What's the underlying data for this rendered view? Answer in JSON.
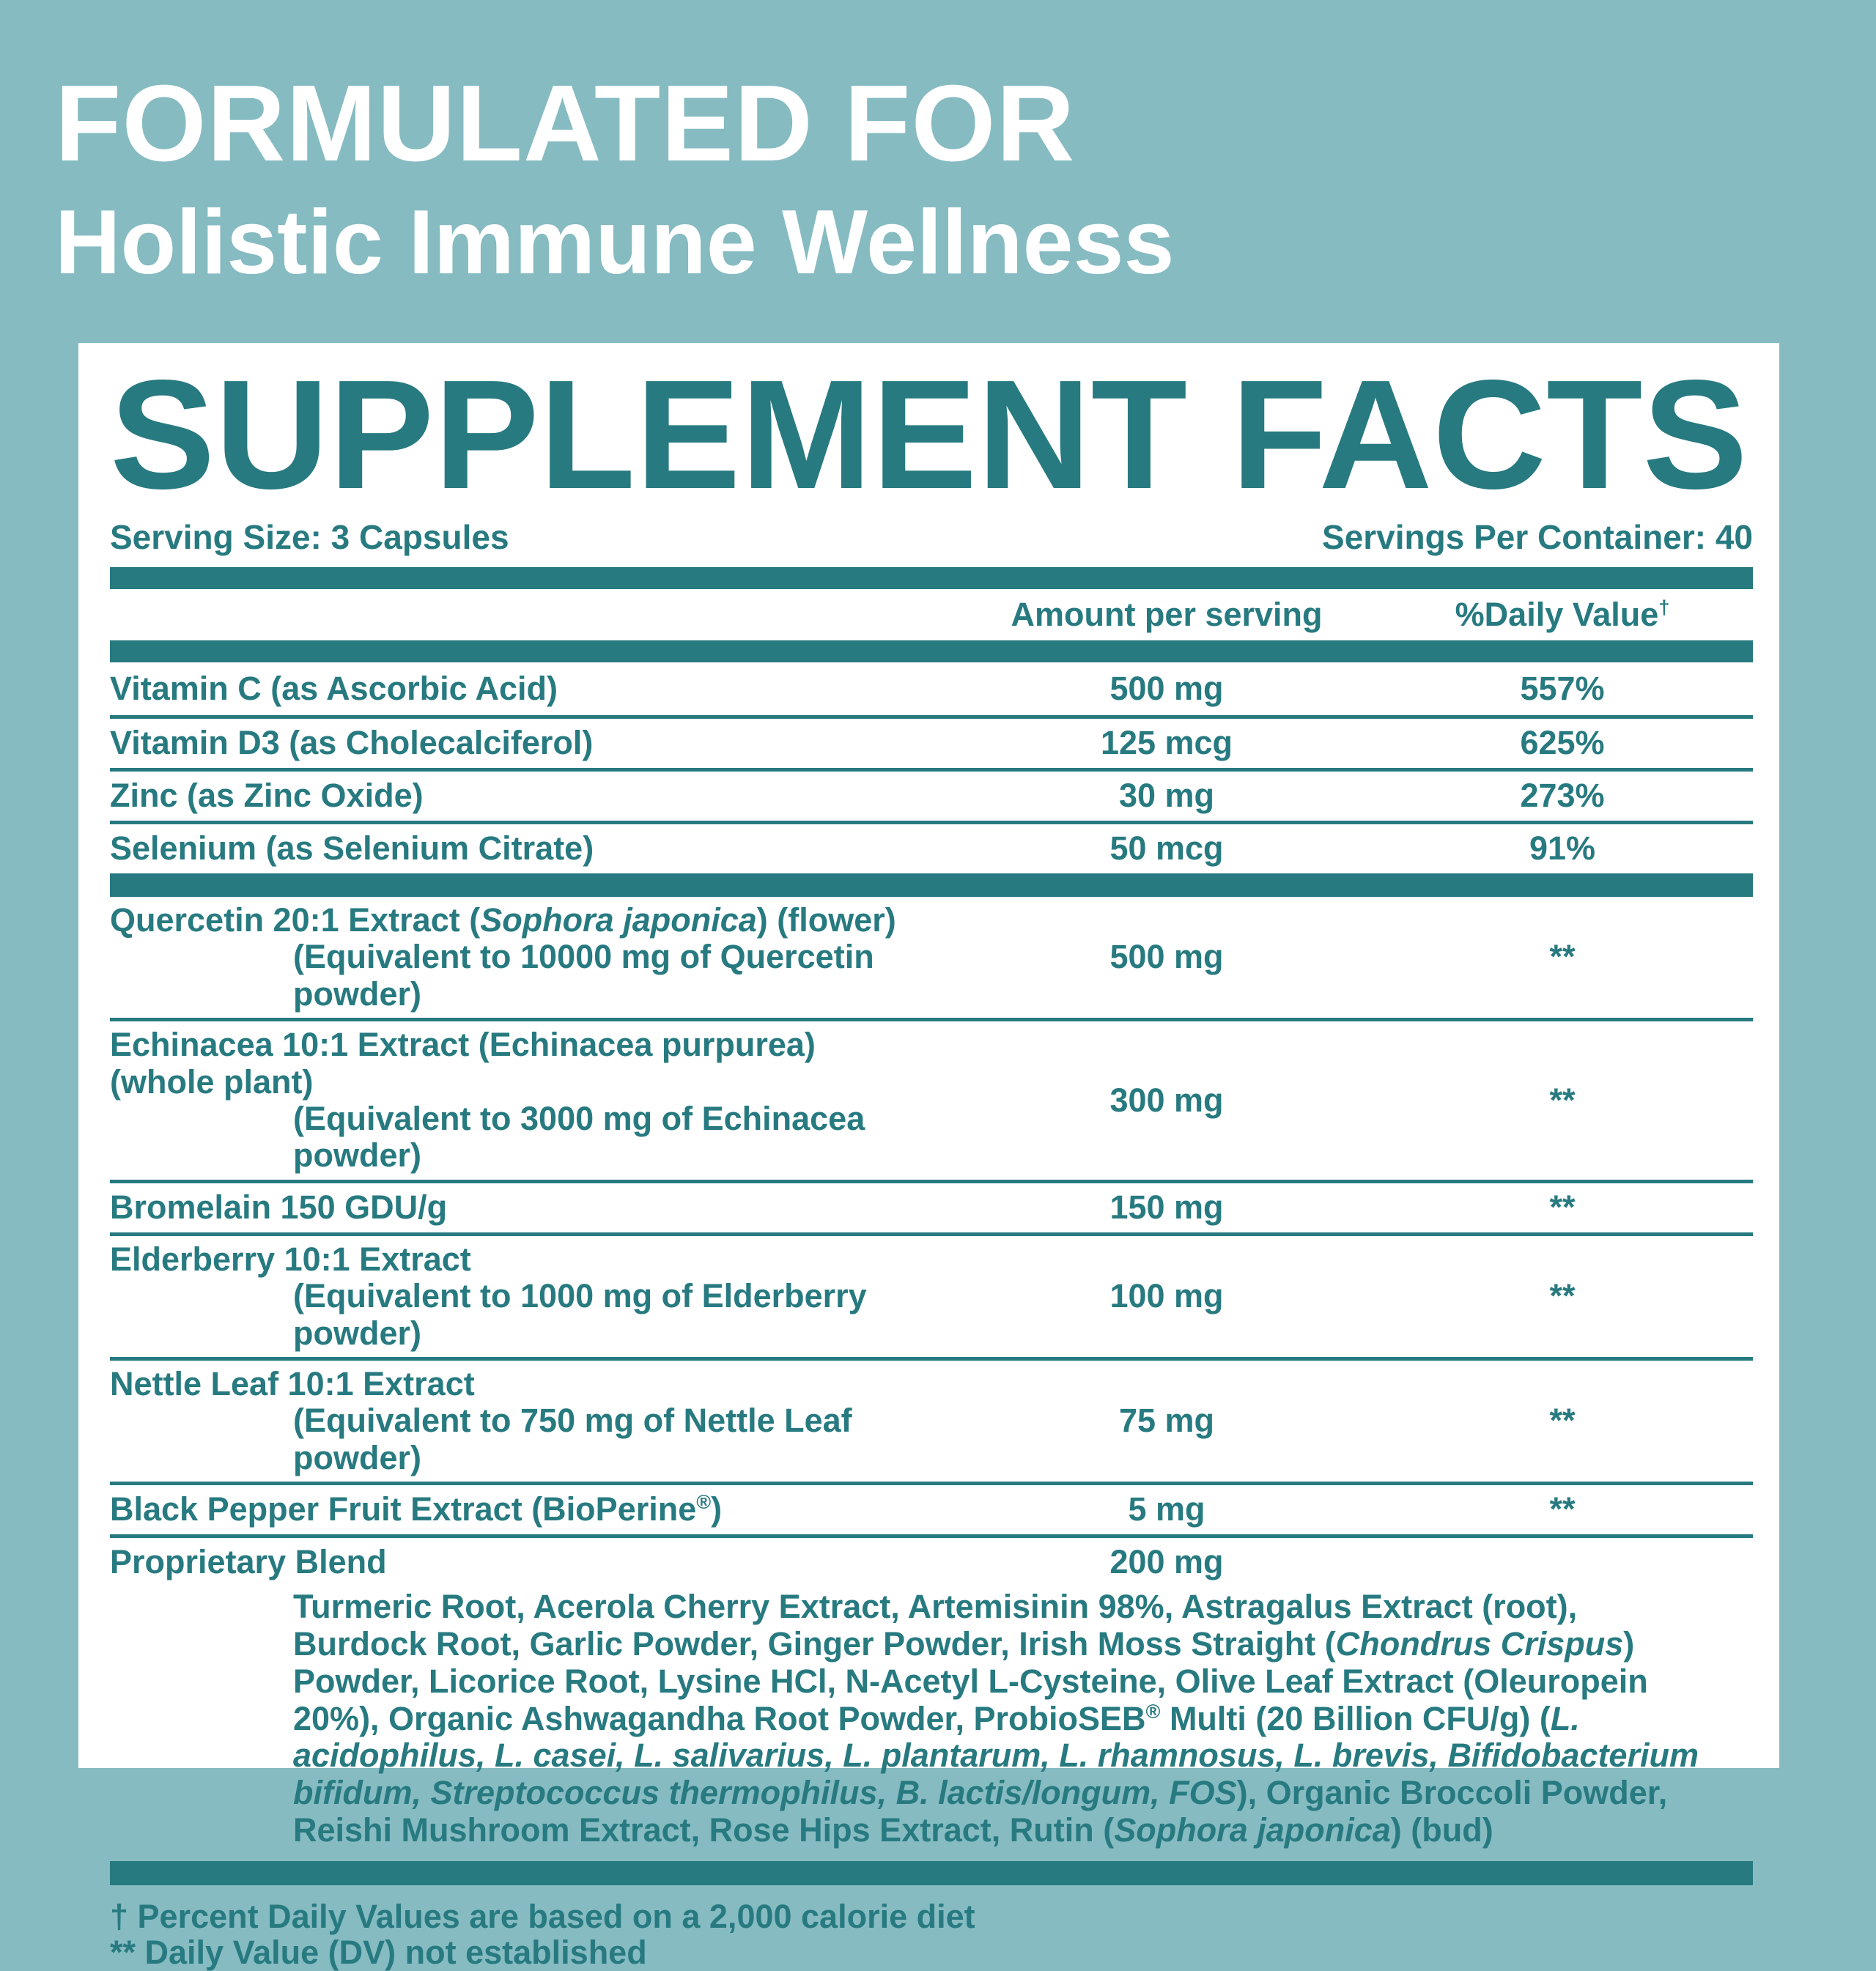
{
  "colors": {
    "background": "#86BBC2",
    "panel": "#FFFFFF",
    "accent": "#277A80",
    "header_text": "#FFFFFF"
  },
  "header": {
    "eyebrow": "FORMULATED FOR",
    "title": "Holistic Immune Wellness"
  },
  "panel": {
    "title": "SUPPLEMENT FACTS",
    "serving_size": "Serving Size: 3 Capsules",
    "servings_per_container": "Servings Per Container: 40",
    "columns": {
      "amount": "Amount per serving",
      "daily_value": "%Daily Value",
      "daily_value_sup": "†"
    },
    "main_rows": [
      {
        "name": [
          {
            "t": "Vitamin C (as Ascorbic Acid)"
          }
        ],
        "amount": "500 mg",
        "dv": "557%"
      },
      {
        "name": [
          {
            "t": "Vitamin D3 (as Cholecalciferol)"
          }
        ],
        "amount": "125 mcg",
        "dv": "625%"
      },
      {
        "name": [
          {
            "t": "Zinc (as Zinc Oxide)"
          }
        ],
        "amount": "30 mg",
        "dv": "273%"
      },
      {
        "name": [
          {
            "t": "Selenium (as Selenium Citrate)"
          }
        ],
        "amount": "50 mcg",
        "dv": "91%"
      }
    ],
    "herb_rows": [
      {
        "name": [
          {
            "t": "Quercetin 20:1 Extract ("
          },
          {
            "t": "Sophora japonica",
            "i": 1
          },
          {
            "t": ") (flower)"
          }
        ],
        "sub": "(Equivalent to 10000 mg of Quercetin powder)",
        "amount": "500 mg",
        "dv": "**"
      },
      {
        "name": [
          {
            "t": "Echinacea 10:1 Extract (Echinacea purpurea) (whole plant)"
          }
        ],
        "sub": "(Equivalent to 3000 mg of Echinacea powder)",
        "amount": "300 mg",
        "dv": "**"
      },
      {
        "name": [
          {
            "t": "Bromelain 150 GDU/g"
          }
        ],
        "sub": null,
        "amount": "150 mg",
        "dv": "**"
      },
      {
        "name": [
          {
            "t": "Elderberry 10:1 Extract"
          }
        ],
        "sub": "(Equivalent to 1000 mg of Elderberry powder)",
        "amount": "100 mg",
        "dv": "**"
      },
      {
        "name": [
          {
            "t": "Nettle Leaf 10:1 Extract"
          }
        ],
        "sub": "(Equivalent to 750 mg of Nettle Leaf powder)",
        "amount": "75 mg",
        "dv": "**"
      },
      {
        "name": [
          {
            "t": "Black Pepper Fruit Extract (BioPerine"
          },
          {
            "t": "®",
            "s": 1
          },
          {
            "t": ")"
          }
        ],
        "sub": null,
        "amount": "5 mg",
        "dv": "**"
      }
    ],
    "blend": {
      "name": "Proprietary Blend",
      "amount": "200 mg",
      "description": [
        {
          "t": "Turmeric Root, Acerola Cherry Extract, Artemisinin 98%, Astragalus Extract (root), Burdock Root, Garlic Powder, Ginger Powder, Irish Moss Straight ("
        },
        {
          "t": "Chondrus Crispus",
          "i": 1
        },
        {
          "t": ") Powder, Licorice Root, Lysine HCl, N-Acetyl L-Cysteine, Olive Leaf Extract (Oleuropein 20%), Organic Ashwagandha Root Powder, ProbioSEB"
        },
        {
          "t": "®",
          "s": 1
        },
        {
          "t": " Multi (20 Billion CFU/g) ("
        },
        {
          "t": "L. acidophilus, L. casei, L. salivarius, L. plantarum, L. rhamnosus, L. brevis, Bifidobacterium bifidum, Streptococcus thermophilus, B. lactis/longum, FOS",
          "i": 1
        },
        {
          "t": "), Organic Broccoli Powder, Reishi Mushroom Extract, Rose Hips Extract, Rutin ("
        },
        {
          "t": "Sophora japonica",
          "i": 1
        },
        {
          "t": ") (bud)"
        }
      ]
    },
    "footnotes": [
      "† Percent Daily Values are based on a 2,000 calorie diet",
      "** Daily Value (DV) not established"
    ]
  }
}
